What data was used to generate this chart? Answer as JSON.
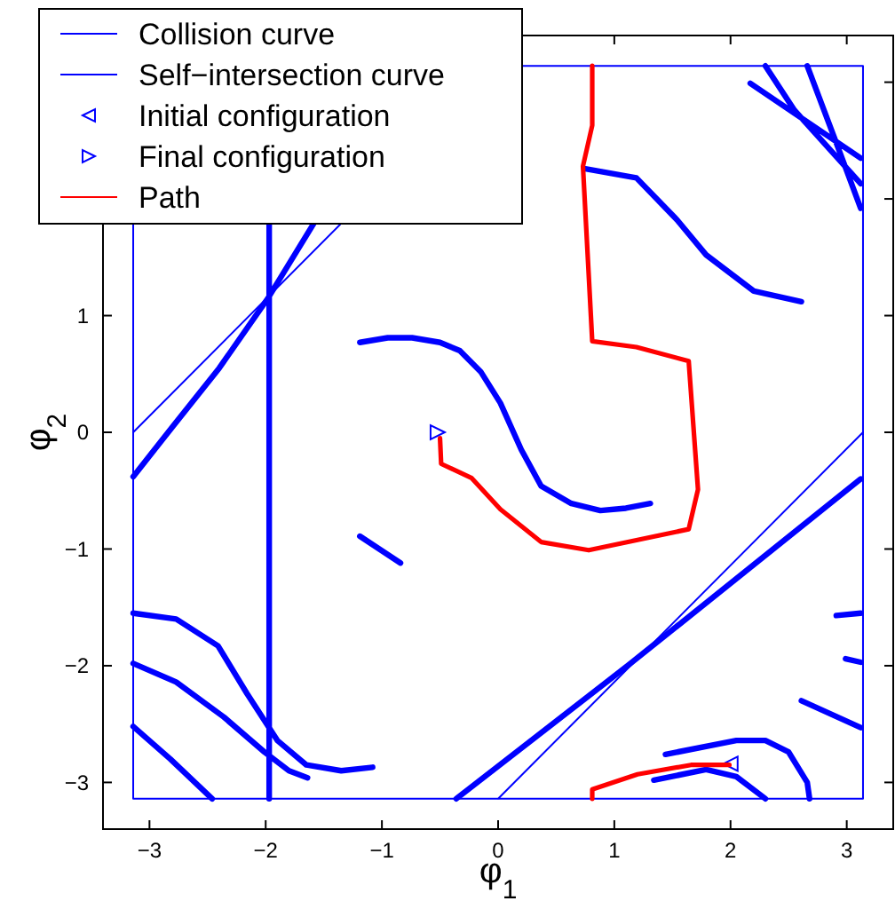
{
  "chart_data": {
    "type": "line",
    "xlabel": "φ$_{1}$",
    "ylabel": "φ$_{2}$",
    "xlim": [
      -3.4,
      3.4
    ],
    "ylim": [
      -3.4,
      3.4
    ],
    "xticks": [
      -3,
      -2,
      -1,
      0,
      1,
      2,
      3
    ],
    "yticks": [
      -3,
      -2,
      -1,
      0,
      1,
      {
        "value": 2,
        "label": null
      },
      {
        "value": 3,
        "label": null
      }
    ],
    "grid": false,
    "legend": "top left",
    "series": [
      {
        "name": "Collision curve",
        "color": "#0000ff",
        "x": [
          -1.97,
          -1.97,
          null,
          -3.14,
          -2.8,
          -2.4,
          -1.98,
          -1.58,
          null,
          -1.19,
          -0.95,
          -0.74,
          -0.5,
          -0.33,
          -0.15,
          0.02,
          0.2,
          0.37,
          0.63,
          0.88,
          1.1,
          1.31,
          null,
          0.74,
          1.19,
          1.54,
          1.79,
          2.2,
          2.61,
          null,
          2.17,
          3.12,
          null,
          2.3,
          2.55,
          3.12,
          null,
          2.66,
          2.91,
          3.12,
          null,
          -1.19,
          -0.84,
          null,
          -3.14,
          -2.77,
          -2.41,
          -2.16,
          -1.9,
          -1.65,
          -1.35,
          -1.08,
          null,
          -3.14,
          -2.77,
          -2.36,
          -2.01,
          -1.8,
          -1.64,
          null,
          -3.14,
          -2.82,
          -2.46,
          null,
          -0.36,
          1.14,
          3.12,
          null,
          2.91,
          3.12,
          null,
          2.99,
          3.12,
          null,
          2.61,
          3.12,
          null,
          1.44,
          2.05,
          2.3,
          2.5,
          2.66,
          2.68,
          null,
          1.34,
          1.79,
          2.05,
          2.3
        ],
        "values": [
          -3.14,
          1.78,
          null,
          -0.38,
          0.05,
          0.55,
          1.15,
          1.8,
          null,
          0.77,
          0.81,
          0.81,
          0.77,
          0.7,
          0.52,
          0.25,
          -0.15,
          -0.46,
          -0.61,
          -0.67,
          -0.65,
          -0.61,
          null,
          2.26,
          2.18,
          1.82,
          1.52,
          1.21,
          1.12,
          null,
          2.99,
          2.35,
          null,
          3.14,
          2.76,
          2.13,
          null,
          3.14,
          2.48,
          1.92,
          null,
          -0.89,
          -1.12,
          null,
          -1.55,
          -1.6,
          -1.83,
          -2.24,
          -2.64,
          -2.85,
          -2.9,
          -2.87,
          null,
          -1.98,
          -2.14,
          -2.44,
          -2.74,
          -2.9,
          -2.96,
          null,
          -2.52,
          -2.8,
          -3.14,
          null,
          -3.14,
          -1.98,
          -0.4,
          null,
          -1.57,
          -1.55,
          null,
          -1.94,
          -1.97,
          null,
          -2.3,
          -2.53,
          null,
          -2.76,
          -2.64,
          -2.64,
          -2.74,
          -3,
          -3.14,
          null,
          -2.98,
          -2.89,
          -2.95,
          -3.14
        ]
      },
      {
        "name": "Self−intersection curve",
        "color": "#0000ff",
        "x": [
          -3.14,
          0,
          3.14,
          null,
          3.14,
          3.14,
          null,
          3.14,
          0.21,
          null,
          -3.14,
          -3.14,
          null,
          -3.14,
          -1.36,
          null,
          0,
          3.14
        ],
        "values": [
          -3.14,
          -3.14,
          -3.14,
          null,
          -3.14,
          3.14,
          null,
          3.14,
          3.14,
          null,
          1.78,
          -3.14,
          null,
          0,
          1.78,
          null,
          -3.14,
          0
        ]
      },
      {
        "name": "Initial configuration",
        "color": "#0000ff",
        "type": "scatter",
        "marker": "triangle-left",
        "x": [
          2.0
        ],
        "values": [
          -2.84
        ]
      },
      {
        "name": "Final configuration",
        "color": "#0000ff",
        "type": "scatter",
        "marker": "triangle-right",
        "x": [
          -0.52
        ],
        "values": [
          0.0
        ]
      },
      {
        "name": "Path",
        "color": "#ff0000",
        "x": [
          1.99,
          1.66,
          1.2,
          0.81,
          0.81,
          null,
          0.81,
          0.81,
          0.73,
          0.81,
          1.19,
          1.64,
          1.72,
          1.64,
          0.78,
          0.37,
          0.02,
          -0.23,
          -0.49,
          -0.5
        ],
        "values": [
          -2.85,
          -2.85,
          -2.93,
          -3.06,
          -3.14,
          null,
          3.14,
          2.63,
          2.28,
          0.78,
          0.73,
          0.61,
          -0.49,
          -0.83,
          -1.01,
          -0.94,
          -0.66,
          -0.39,
          -0.27,
          -0.05
        ]
      }
    ]
  }
}
